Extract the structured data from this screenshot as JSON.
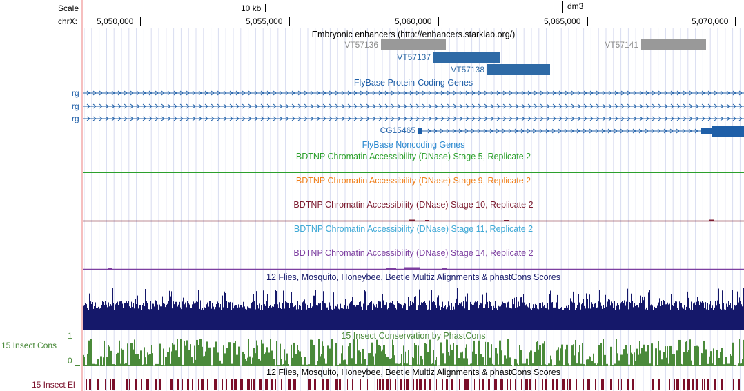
{
  "browser": {
    "scale_label": "Scale",
    "chrom_label": "chrX:",
    "scale_bar_label": "10 kb",
    "assembly": "dm3",
    "positions": [
      "5,050,000",
      "5,055,000",
      "5,060,000",
      "5,065,000",
      "5,070,000"
    ]
  },
  "tracks": {
    "enhancers": {
      "title": "Embryonic enhancers (http://enhancers.starklab.org/)",
      "items": [
        "VT57136",
        "VT57137",
        "VT57138",
        "VT57141"
      ]
    },
    "protein_coding": {
      "title": "FlyBase Protein-Coding Genes",
      "rows": [
        "rg",
        "rg",
        "rg"
      ],
      "gene": "CG15465"
    },
    "noncoding": {
      "title": "FlyBase Noncoding Genes"
    },
    "dnase": [
      {
        "title": "BDTNP Chromatin Accessibility (DNase) Stage 5, Replicate 2",
        "color": "#2ca02c"
      },
      {
        "title": "BDTNP Chromatin Accessibility (DNase) Stage 9, Replicate 2",
        "color": "#f07f1a"
      },
      {
        "title": "BDTNP Chromatin Accessibility (DNase) Stage 10, Replicate 2",
        "color": "#7b1a2e"
      },
      {
        "title": "BDTNP Chromatin Accessibility (DNase) Stage 11, Replicate 2",
        "color": "#3fa9d6"
      },
      {
        "title": "BDTNP Chromatin Accessibility (DNase) Stage 14, Replicate 2",
        "color": "#7d3fa0"
      }
    ],
    "multiz": {
      "title": "12 Flies, Mosquito, Honeybee, Beetle Multiz Alignments & phastCons Scores"
    },
    "phastcons": {
      "title": "15 Insect Conservation by PhastCons",
      "side_label": "15 Insect Cons",
      "ymax": "1",
      "ymin": "0"
    },
    "elements": {
      "title": "12 Flies, Mosquito, Honeybee, Beetle Multiz Alignments & phastCons Scores",
      "side_label": "15 Insect El"
    }
  },
  "colors": {
    "enhancer_gray": "#999999",
    "enhancer_blue": "#2e6aa6",
    "gene_blue": "#1f5fa8",
    "noncoding_blue": "#2d8ad0",
    "multiz_navy": "#15186a",
    "phastcons_green": "#4a8a3a",
    "elements_maroon": "#7a0f2a",
    "grid_blue": "#d8dcf0",
    "left_red": "#f4aaaa"
  }
}
